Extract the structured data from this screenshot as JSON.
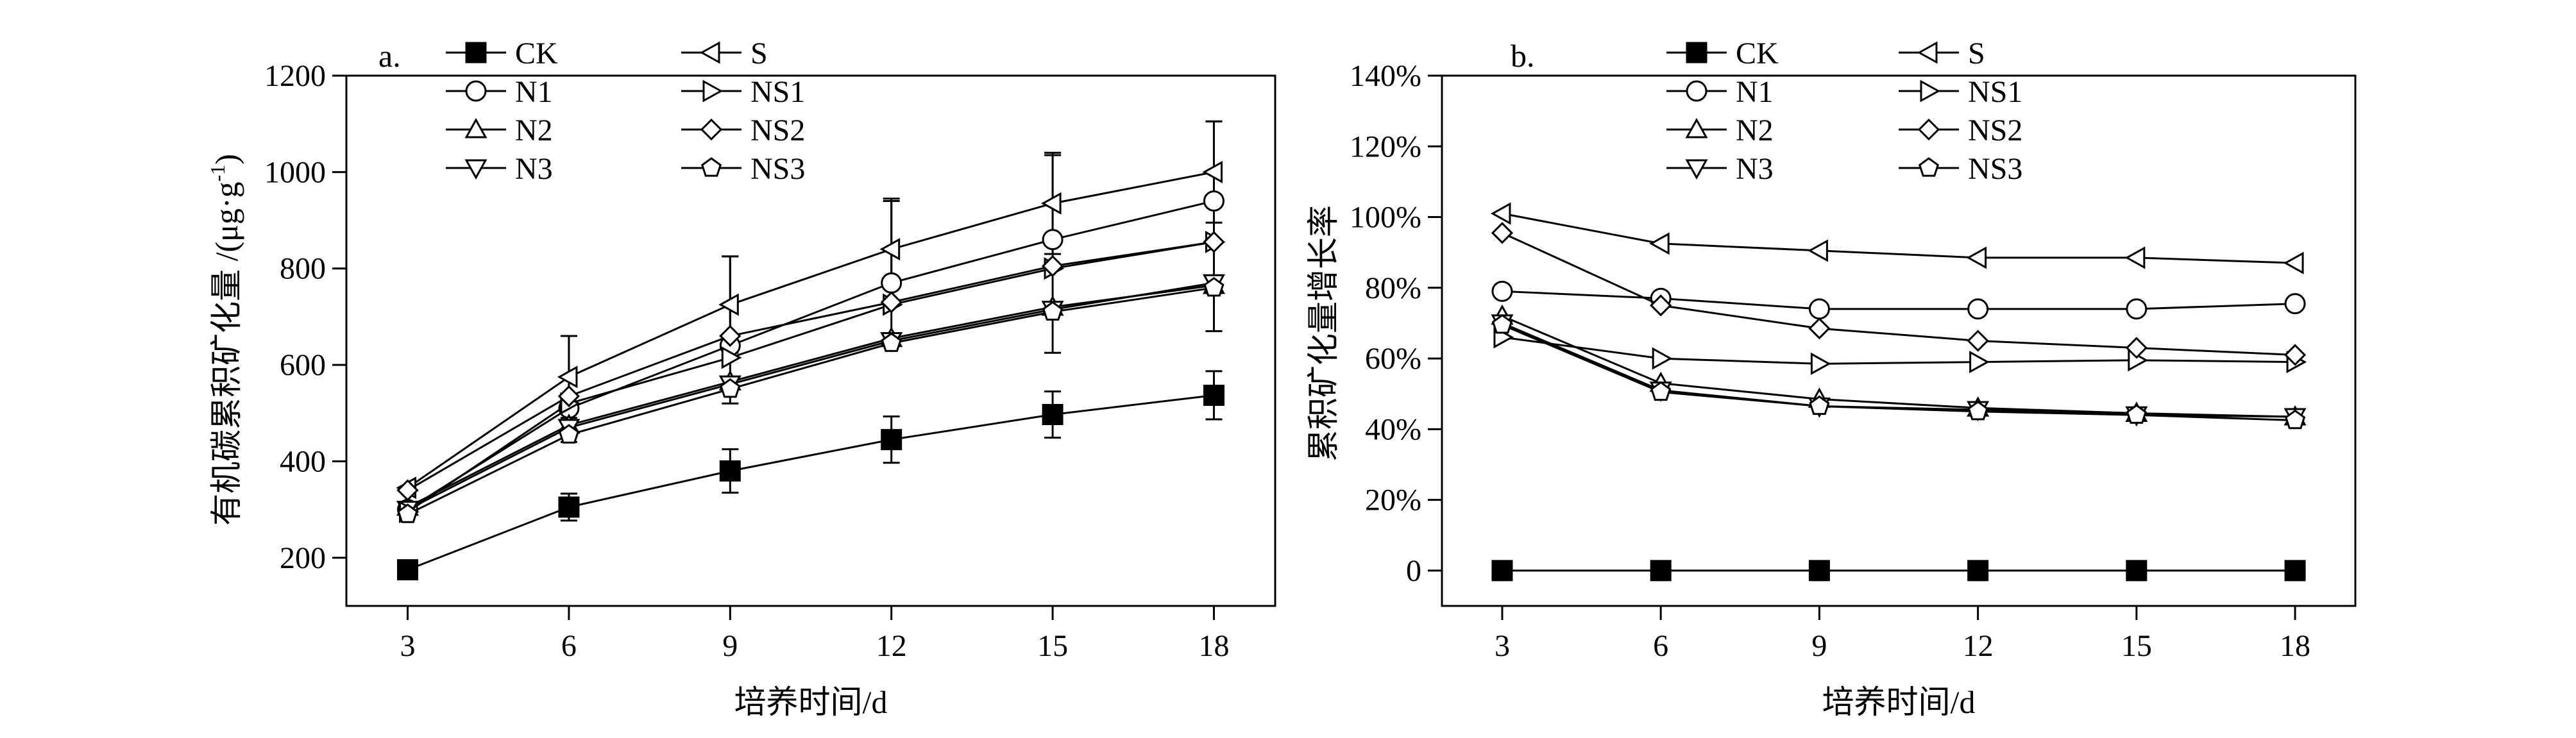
{
  "chart_data": [
    {
      "type": "line",
      "panel_label": "a.",
      "xlabel": "培养时间/d",
      "ylabel_main": "有机碳累积矿化量 /(μg·g",
      "ylabel_sup": "-1",
      "ylabel_end": ")",
      "x": [
        3,
        6,
        9,
        12,
        15,
        18
      ],
      "xticks": [
        "3",
        "6",
        "9",
        "12",
        "15",
        "18"
      ],
      "ylim": [
        100,
        1200
      ],
      "yticks": [
        200,
        400,
        600,
        800,
        1000,
        1200
      ],
      "ytick_labels": [
        "200",
        "400",
        "600",
        "800",
        "1000",
        "1200"
      ],
      "series": [
        {
          "name": "CK",
          "marker": "square",
          "values": [
            175,
            305,
            380,
            445,
            497,
            537
          ],
          "err": [
            0,
            28,
            45,
            48,
            48,
            50
          ]
        },
        {
          "name": "N1",
          "marker": "circle",
          "values": [
            300,
            510,
            640,
            770,
            860,
            940
          ],
          "err": [
            0,
            0,
            0,
            0,
            0,
            0
          ]
        },
        {
          "name": "N2",
          "marker": "tri-up",
          "values": [
            305,
            475,
            565,
            655,
            720,
            765
          ],
          "err": [
            0,
            0,
            0,
            0,
            0,
            0
          ]
        },
        {
          "name": "N3",
          "marker": "tri-down",
          "values": [
            300,
            470,
            560,
            650,
            715,
            770
          ],
          "err": [
            0,
            0,
            0,
            0,
            0,
            0
          ]
        },
        {
          "name": "S",
          "marker": "tri-left",
          "values": [
            345,
            575,
            725,
            840,
            935,
            1000
          ],
          "err": [
            0,
            85,
            100,
            105,
            105,
            105
          ]
        },
        {
          "name": "NS1",
          "marker": "tri-right",
          "values": [
            295,
            520,
            615,
            725,
            800,
            855
          ],
          "err": [
            0,
            0,
            0,
            0,
            0,
            0
          ]
        },
        {
          "name": "NS2",
          "marker": "diamond",
          "values": [
            340,
            535,
            660,
            730,
            805,
            855
          ],
          "err": [
            0,
            0,
            0,
            0,
            0,
            0
          ]
        },
        {
          "name": "NS3",
          "marker": "pentagon",
          "values": [
            290,
            455,
            550,
            645,
            710,
            760
          ],
          "err": [
            0,
            0,
            0,
            0,
            0,
            0
          ]
        }
      ],
      "error_bars": [
        {
          "x": 6,
          "low": 440,
          "high": 660
        },
        {
          "x": 9,
          "low": 520,
          "high": 825
        },
        {
          "x": 12,
          "low": 640,
          "high": 940
        },
        {
          "x": 15,
          "low": 625,
          "high": 1035
        },
        {
          "x": 18,
          "low": 670,
          "high": 1105
        }
      ]
    },
    {
      "type": "line",
      "panel_label": "b.",
      "xlabel": "培养时间/d",
      "ylabel": "累积矿化量增长率",
      "x": [
        3,
        6,
        9,
        12,
        15,
        18
      ],
      "xticks": [
        "3",
        "6",
        "9",
        "12",
        "15",
        "18"
      ],
      "ylim": [
        -0.1,
        1.4
      ],
      "yticks": [
        0,
        0.2,
        0.4,
        0.6,
        0.8,
        1.0,
        1.2,
        1.4
      ],
      "ytick_labels": [
        "0",
        "20%",
        "40%",
        "60%",
        "80%",
        "100%",
        "120%",
        "140%"
      ],
      "series": [
        {
          "name": "CK",
          "marker": "square",
          "values": [
            0,
            0,
            0,
            0,
            0,
            0
          ]
        },
        {
          "name": "N1",
          "marker": "circle",
          "values": [
            0.79,
            0.77,
            0.74,
            0.74,
            0.74,
            0.755
          ]
        },
        {
          "name": "N2",
          "marker": "tri-up",
          "values": [
            0.72,
            0.53,
            0.485,
            0.46,
            0.445,
            0.435
          ]
        },
        {
          "name": "N3",
          "marker": "tri-down",
          "values": [
            0.7,
            0.51,
            0.465,
            0.455,
            0.44,
            0.435
          ]
        },
        {
          "name": "S",
          "marker": "tri-left",
          "values": [
            1.01,
            0.925,
            0.905,
            0.885,
            0.885,
            0.87
          ]
        },
        {
          "name": "NS1",
          "marker": "tri-right",
          "values": [
            0.66,
            0.6,
            0.585,
            0.59,
            0.595,
            0.59
          ]
        },
        {
          "name": "NS2",
          "marker": "diamond",
          "values": [
            0.955,
            0.75,
            0.685,
            0.65,
            0.63,
            0.61
          ]
        },
        {
          "name": "NS3",
          "marker": "pentagon",
          "values": [
            0.695,
            0.505,
            0.465,
            0.45,
            0.44,
            0.425
          ]
        }
      ]
    }
  ]
}
